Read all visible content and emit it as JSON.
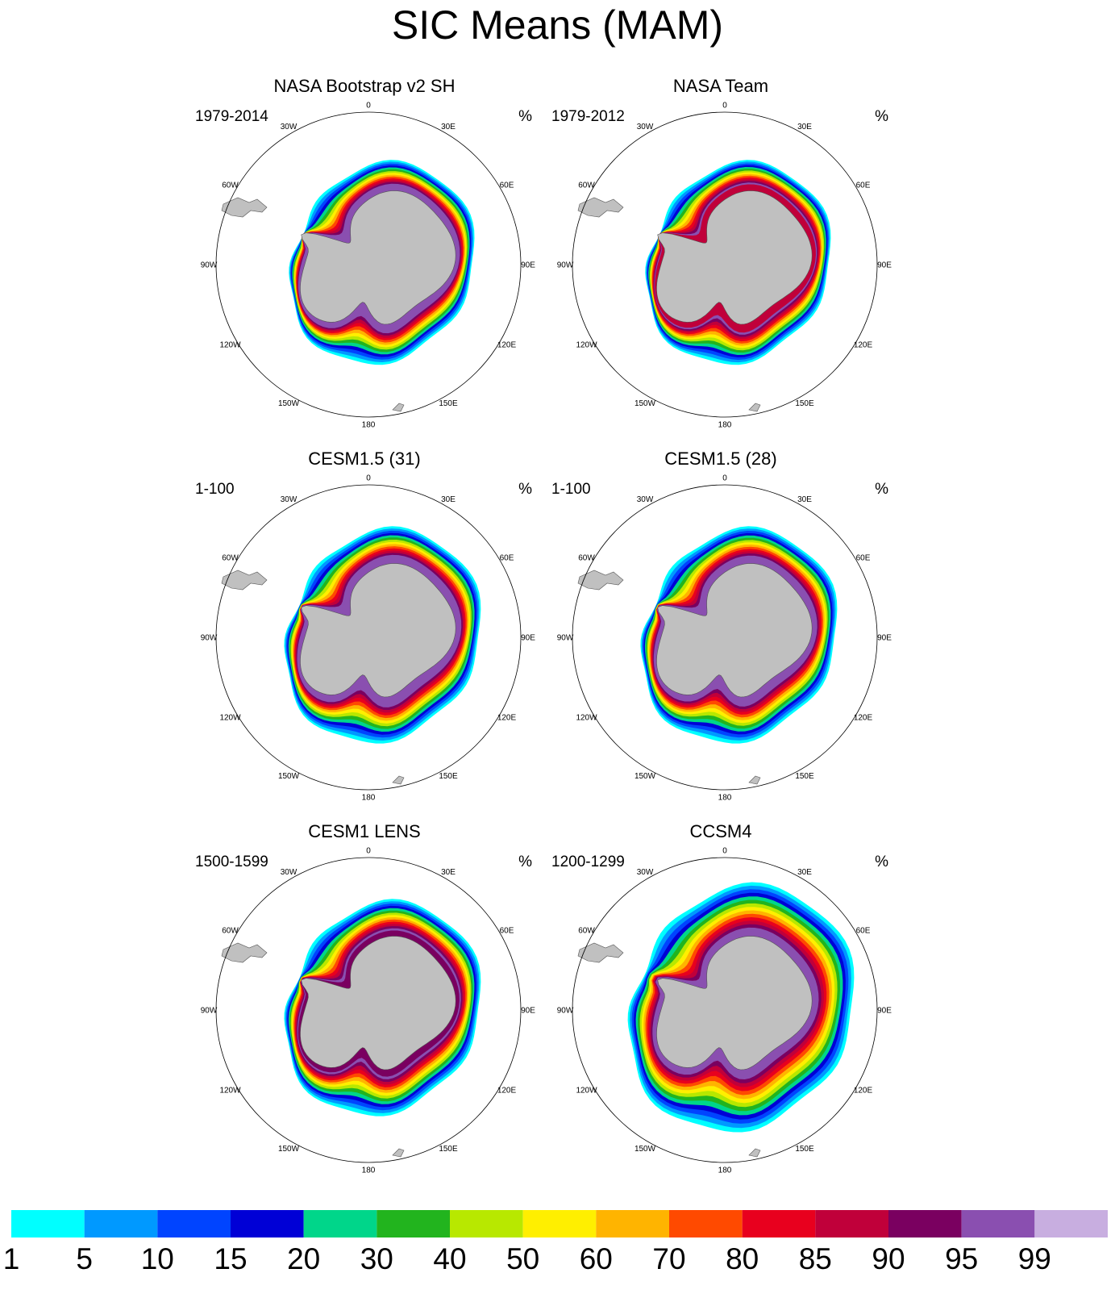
{
  "title": "SIC Means (MAM)",
  "unit": "%",
  "longitude_labels": [
    "0",
    "30E",
    "60E",
    "90E",
    "120E",
    "150E",
    "180",
    "150W",
    "120W",
    "90W",
    "60W",
    "30W"
  ],
  "panels": [
    {
      "title": "NASA Bootstrap v2 SH",
      "period": "1979-2014",
      "extent": 1.0,
      "inner": 0.55,
      "core_color": "#8a4fb0"
    },
    {
      "title": "NASA Team",
      "period": "1979-2012",
      "extent": 1.0,
      "inner": 0.45,
      "core_color": "#c0003a"
    },
    {
      "title": "CESM1.5 (31)",
      "period": "1-100",
      "extent": 1.06,
      "inner": 0.55,
      "core_color": "#8a4fb0"
    },
    {
      "title": "CESM1.5 (28)",
      "period": "1-100",
      "extent": 1.06,
      "inner": 0.6,
      "core_color": "#8a4fb0"
    },
    {
      "title": "CESM1 LENS",
      "period": "1500-1599",
      "extent": 1.06,
      "inner": 0.6,
      "core_color": "#7a0060"
    },
    {
      "title": "CCSM4",
      "period": "1200-1299",
      "extent": 1.22,
      "inner": 0.75,
      "core_color": "#8a4fb0"
    }
  ],
  "colorbar": {
    "labels": [
      "1",
      "5",
      "10",
      "15",
      "20",
      "30",
      "40",
      "50",
      "60",
      "70",
      "80",
      "85",
      "90",
      "95",
      "99"
    ],
    "colors": [
      "#00ffff",
      "#0099ff",
      "#0044ff",
      "#0000d6",
      "#00d68a",
      "#22b41e",
      "#b8e800",
      "#ffef00",
      "#ffb400",
      "#ff4a00",
      "#e8001e",
      "#c0003a",
      "#7a0060",
      "#8a4fb0",
      "#c8aee0"
    ]
  }
}
